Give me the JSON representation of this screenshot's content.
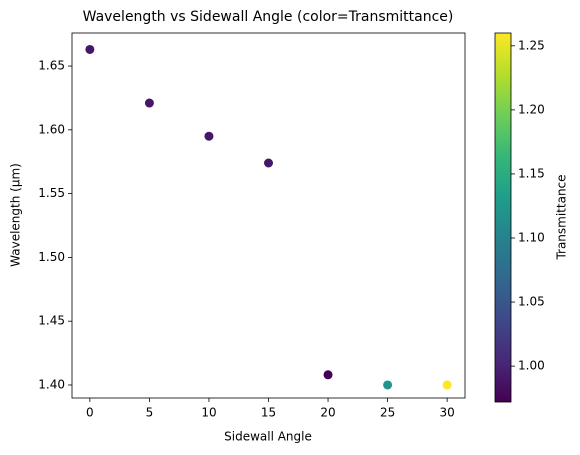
{
  "chart_data": {
    "type": "scatter",
    "title": "Wavelength vs Sidewall Angle (color=Transmittance)",
    "x_label": "Sidewall Angle",
    "y_label": "Wavelength (μm)",
    "x": [
      0,
      5,
      10,
      15,
      20,
      25,
      30
    ],
    "values": [
      1.663,
      1.621,
      1.595,
      1.574,
      1.408,
      1.4,
      1.4
    ],
    "color_values": [
      0.99,
      0.99,
      0.99,
      0.99,
      0.972,
      1.12,
      1.26
    ],
    "cmap": "viridis",
    "colorbar_label": "Transmittance",
    "clim": [
      0.972,
      1.26
    ],
    "cticks": [
      {
        "value": 1,
        "label": "1.00"
      },
      1.05,
      {
        "value": 1.1,
        "label": "1.10"
      },
      1.15,
      {
        "value": 1.2,
        "label": "1.20"
      },
      1.25
    ],
    "xlim": [
      -1.5,
      31.5
    ],
    "xticks": [
      0,
      5,
      10,
      15,
      20,
      25,
      30
    ],
    "ylim": [
      1.3898,
      1.6759
    ],
    "yticks": [
      {
        "value": 1.4,
        "label": "1.40"
      },
      1.45,
      {
        "value": 1.5,
        "label": "1.50"
      },
      1.55,
      {
        "value": 1.6,
        "label": "1.60"
      },
      1.65
    ],
    "grid": false
  }
}
